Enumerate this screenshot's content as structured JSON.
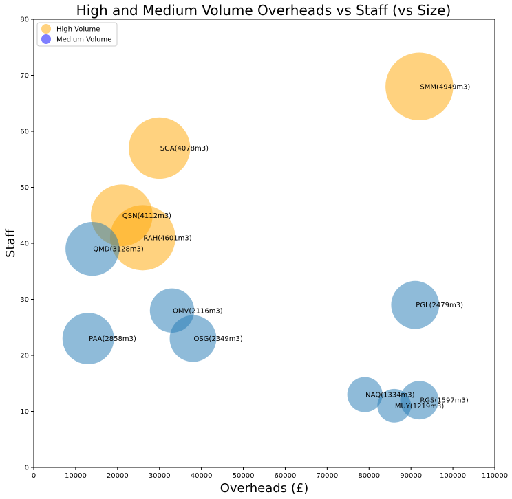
{
  "chart_data": {
    "type": "scatter",
    "title": "High and Medium Volume Overheads vs Staff (vs Size)",
    "xlabel": "Overheads  (£)",
    "ylabel": "Staff",
    "xlim": [
      0,
      110000
    ],
    "ylim": [
      0,
      80
    ],
    "x_ticks": [
      "0",
      "10000",
      "20000",
      "30000",
      "40000",
      "50000",
      "60000",
      "70000",
      "80000",
      "90000",
      "100000",
      "110000"
    ],
    "y_ticks": [
      "0",
      "10",
      "20",
      "30",
      "40",
      "50",
      "60",
      "70",
      "80"
    ],
    "grid": false,
    "legend_position": "top-left",
    "series": [
      {
        "name": "High Volume",
        "color": "#ffa500",
        "points": [
          {
            "label": "SMM(4949m3)",
            "x": 92000,
            "y": 68,
            "size": 4949
          },
          {
            "label": "SGA(4078m3)",
            "x": 30000,
            "y": 57,
            "size": 4078
          },
          {
            "label": "QSN(4112m3)",
            "x": 21000,
            "y": 45,
            "size": 4112
          },
          {
            "label": "RAH(4601m3)",
            "x": 26000,
            "y": 41,
            "size": 4601
          }
        ]
      },
      {
        "name": "Medium Volume",
        "color": "#1f77b4",
        "legend_color": "#0000ff",
        "points": [
          {
            "label": "QMD(3128m3)",
            "x": 14000,
            "y": 39,
            "size": 3128
          },
          {
            "label": "PGL(2479m3)",
            "x": 91000,
            "y": 29,
            "size": 2479
          },
          {
            "label": "OMV(2116m3)",
            "x": 33000,
            "y": 28,
            "size": 2116
          },
          {
            "label": "PAA(2858m3)",
            "x": 13000,
            "y": 23,
            "size": 2858
          },
          {
            "label": "OSG(2349m3)",
            "x": 38000,
            "y": 23,
            "size": 2349
          },
          {
            "label": "NAQ(1334m3)",
            "x": 79000,
            "y": 13,
            "size": 1334
          },
          {
            "label": "RGS(1597m3)",
            "x": 92000,
            "y": 12,
            "size": 1597
          },
          {
            "label": "MUY(1219m3)",
            "x": 86000,
            "y": 11,
            "size": 1219
          }
        ]
      }
    ]
  }
}
